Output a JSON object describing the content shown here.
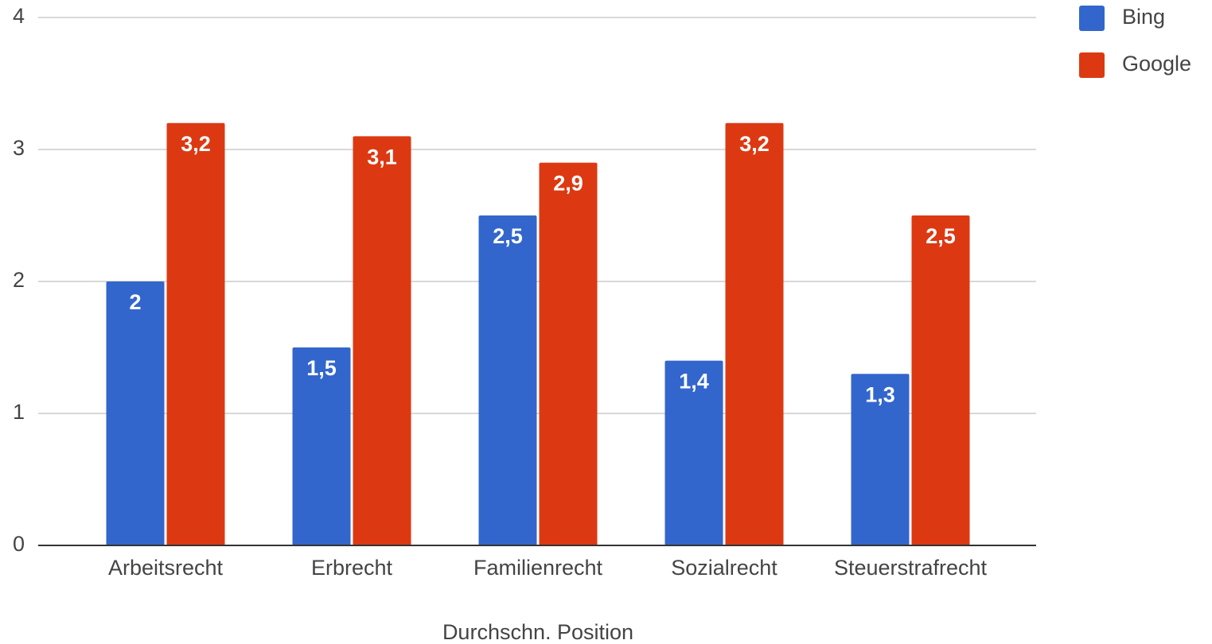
{
  "chart_data": {
    "type": "bar",
    "x_label": "Durchschn. Position",
    "categories": [
      "Arbeitsrecht",
      "Erbrecht",
      "Familienrecht",
      "Sozialrecht",
      "Steuerstrafrecht"
    ],
    "series": [
      {
        "name": "Bing",
        "color": "#3366cc",
        "values": [
          2,
          1.5,
          2.5,
          1.4,
          1.3
        ],
        "value_labels": [
          "2",
          "1,5",
          "2,5",
          "1,4",
          "1,3"
        ]
      },
      {
        "name": "Google",
        "color": "#dc3912",
        "values": [
          3.2,
          3.1,
          2.9,
          3.2,
          2.5
        ],
        "value_labels": [
          "3,2",
          "3,1",
          "2,9",
          "3,2",
          "2,5"
        ]
      }
    ],
    "ylim": [
      0,
      4
    ],
    "yticks": [
      0,
      1,
      2,
      3,
      4
    ],
    "grid": true,
    "legend": "right"
  }
}
